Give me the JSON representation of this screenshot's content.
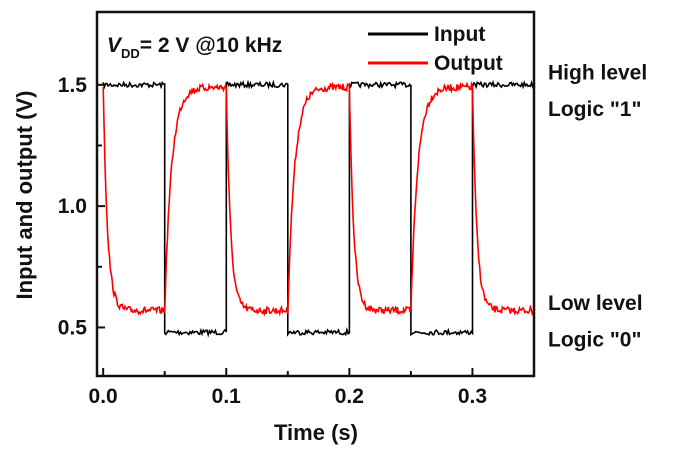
{
  "chart_data": {
    "type": "line",
    "xlabel": "Time (s)",
    "ylabel": "Input and output (V)",
    "xlim": [
      -0.005,
      0.35
    ],
    "ylim": [
      0.3,
      1.8
    ],
    "xticks": [
      0.0,
      0.1,
      0.2,
      0.3
    ],
    "xtick_labels": [
      "0.0",
      "0.1",
      "0.2",
      "0.3"
    ],
    "yticks": [
      0.5,
      1.0,
      1.5
    ],
    "ytick_labels": [
      "0.5",
      "1.0",
      "1.5"
    ],
    "grid": false,
    "legend_position": "top-right",
    "condition": {
      "var_main": "V",
      "var_sub": "DD",
      "value": "= 2 V @10 kHz"
    },
    "series": [
      {
        "name": "Input",
        "color": "#000000",
        "x": [
          0.0,
          0.05,
          0.05,
          0.1,
          0.1,
          0.15,
          0.15,
          0.2,
          0.2,
          0.25,
          0.25,
          0.3,
          0.3,
          0.35
        ],
        "y": [
          1.5,
          1.5,
          0.48,
          0.48,
          1.5,
          1.5,
          0.48,
          0.48,
          1.5,
          1.5,
          0.48,
          0.48,
          1.5,
          1.5
        ]
      },
      {
        "name": "Output",
        "color": "#ff0000",
        "low_level": 0.57,
        "high_level": 1.49,
        "transitions": [
          {
            "t": 0.0,
            "to": "low"
          },
          {
            "t": 0.05,
            "to": "high"
          },
          {
            "t": 0.1,
            "to": "low"
          },
          {
            "t": 0.15,
            "to": "high"
          },
          {
            "t": 0.2,
            "to": "low"
          },
          {
            "t": 0.25,
            "to": "high"
          },
          {
            "t": 0.3,
            "to": "low"
          }
        ]
      }
    ],
    "annotations": [
      {
        "text": "High level",
        "y": 1.55
      },
      {
        "text": "Logic \"1\"",
        "y": 1.4
      },
      {
        "text": "Low level",
        "y": 0.6
      },
      {
        "text": "Logic \"0\"",
        "y": 0.45
      }
    ]
  }
}
